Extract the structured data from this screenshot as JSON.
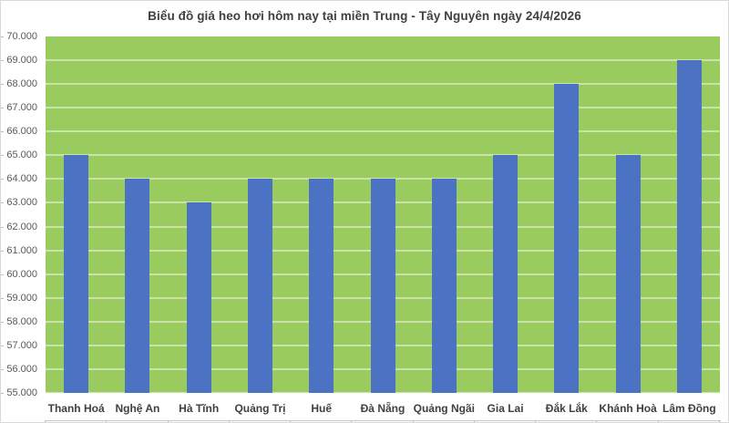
{
  "chart_data": {
    "type": "bar",
    "title": "Biểu đồ giá heo hơi hôm nay tại miền Trung - Tây Nguyên ngày 24/4/2026",
    "categories": [
      "Thanh Hoá",
      "Nghệ An",
      "Hà Tĩnh",
      "Quảng Trị",
      "Huế",
      "Đà Nẵng",
      "Quảng Ngãi",
      "Gia Lai",
      "Đắk Lắk",
      "Khánh Hoà",
      "Lâm Đồng"
    ],
    "values": [
      65000,
      64000,
      63000,
      64000,
      64000,
      64000,
      64000,
      65000,
      68000,
      65000,
      69000
    ],
    "y_tick_labels": [
      "70.000",
      "69.000",
      "68.000",
      "67.000",
      "66.000",
      "65.000",
      "64.000",
      "63.000",
      "62.000",
      "61.000",
      "60.000",
      "59.000",
      "58.000",
      "57.000",
      "56.000",
      "55.000"
    ],
    "ylim": [
      55000,
      70000
    ],
    "ytick_interval": 1000,
    "xlabel": "",
    "ylabel": "",
    "legend": "none",
    "grid": "horizontal",
    "colors": {
      "bar": "#4C72C4",
      "plot_background": "#9ACB5E",
      "gridline": "#C9E3A7",
      "title_text": "#404040",
      "y_tick_text": "#595959",
      "x_label_text": "#404040",
      "chart_border": "#D9D9D9"
    }
  }
}
